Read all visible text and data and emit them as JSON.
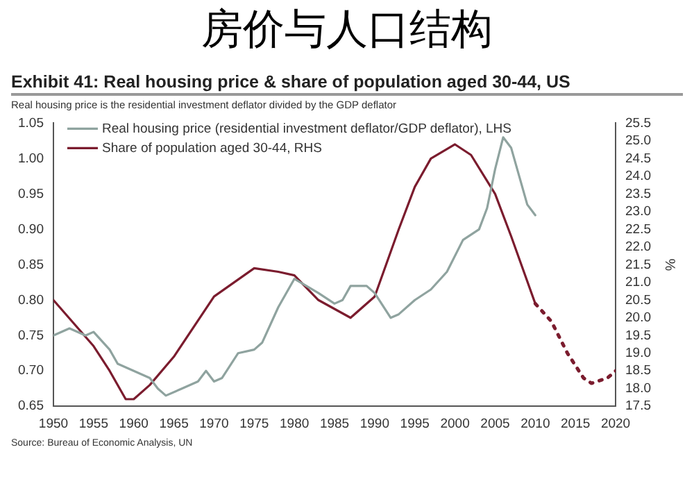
{
  "chart_data": {
    "type": "line",
    "title": "房价与人口结构",
    "subtitle": "Exhibit 41: Real housing price & share of population aged 30-44, US",
    "annotations": [
      "Real housing price is the residential investment deflator divided by the GDP deflator",
      "Source: Bureau of Economic Analysis, UN"
    ],
    "y2label": "%",
    "xlim": [
      1950,
      2020
    ],
    "xticks": [
      1950,
      1955,
      1960,
      1965,
      1970,
      1975,
      1980,
      1985,
      1990,
      1995,
      2000,
      2005,
      2010,
      2015,
      2020
    ],
    "ylim": [
      0.65,
      1.05
    ],
    "yticks": [
      {
        "value": 0.65,
        "label": "0.65"
      },
      {
        "value": 0.7,
        "label": "0.70"
      },
      {
        "value": 0.75,
        "label": "0.75"
      },
      {
        "value": 0.8,
        "label": "0.80"
      },
      {
        "value": 0.85,
        "label": "0.85"
      },
      {
        "value": 0.9,
        "label": "0.90"
      },
      {
        "value": 0.95,
        "label": "0.95"
      },
      {
        "value": 1.0,
        "label": "1.00"
      },
      {
        "value": 1.05,
        "label": "1.05"
      }
    ],
    "y2lim": [
      17.5,
      25.5
    ],
    "y2ticks": [
      {
        "value": 17.5,
        "label": "17.5"
      },
      {
        "value": 18,
        "label": "18.0"
      },
      {
        "value": 18.5,
        "label": "18.5"
      },
      {
        "value": 19,
        "label": "19.0"
      },
      {
        "value": 19.5,
        "label": "19.5"
      },
      {
        "value": 20,
        "label": "20.0"
      },
      {
        "value": 20.5,
        "label": "20.5"
      },
      {
        "value": 21,
        "label": "21.0"
      },
      {
        "value": 21.5,
        "label": "21.5"
      },
      {
        "value": 22,
        "label": "22.0"
      },
      {
        "value": 22.5,
        "label": "22.5"
      },
      {
        "value": 23,
        "label": "23.0"
      },
      {
        "value": 23.5,
        "label": "23.5"
      },
      {
        "value": 24,
        "label": "24.0"
      },
      {
        "value": 24.5,
        "label": "24.5"
      },
      {
        "value": 25,
        "label": "25.0"
      },
      {
        "value": 25.5,
        "label": "25.5"
      }
    ],
    "grid": false,
    "legend": "top left",
    "marker": "none",
    "series": [
      {
        "name": "Real housing price (residential investment deflator/GDP deflator), LHS",
        "color": "#8fa39f",
        "line_style": "solid",
        "x": [
          1950,
          1952,
          1954,
          1955,
          1957,
          1958,
          1960,
          1962,
          1963,
          1964,
          1966,
          1968,
          1969,
          1970,
          1971,
          1973,
          1975,
          1976,
          1978,
          1980,
          1983,
          1985,
          1986,
          1987,
          1989,
          1990,
          1992,
          1993,
          1995,
          1997,
          1999,
          2001,
          2003,
          2004,
          2005,
          2006,
          2007,
          2008,
          2009,
          2010
        ],
        "values": [
          0.75,
          0.76,
          0.75,
          0.755,
          0.73,
          0.71,
          0.7,
          0.69,
          0.675,
          0.665,
          0.675,
          0.685,
          0.7,
          0.685,
          0.69,
          0.725,
          0.73,
          0.74,
          0.79,
          0.83,
          0.81,
          0.795,
          0.8,
          0.82,
          0.82,
          0.81,
          0.775,
          0.78,
          0.8,
          0.815,
          0.84,
          0.885,
          0.9,
          0.93,
          0.985,
          1.03,
          1.015,
          0.975,
          0.935,
          0.92
        ]
      },
      {
        "name": "Share of population aged 30-44, RHS",
        "color": "#7b1c2e",
        "axis": "y2",
        "line_style": "solid",
        "x": [
          1950,
          1955,
          1957,
          1959,
          1960,
          1962,
          1965,
          1970,
          1975,
          1978,
          1980,
          1983,
          1987,
          1990,
          1993,
          1995,
          1997,
          2000,
          2002,
          2005,
          2007,
          2010
        ],
        "values": [
          20.5,
          19.2,
          18.5,
          17.7,
          17.7,
          18.1,
          18.9,
          20.6,
          21.4,
          21.3,
          21.2,
          20.5,
          20.0,
          20.6,
          22.5,
          23.7,
          24.5,
          24.9,
          24.6,
          23.5,
          22.3,
          20.4
        ]
      },
      {
        "color": "#7b1c2e",
        "axis": "y2",
        "line_style": "dotted",
        "x": [
          2010,
          2012,
          2014,
          2016,
          2017,
          2019,
          2020
        ],
        "values": [
          20.4,
          19.9,
          19.0,
          18.3,
          18.15,
          18.3,
          18.5
        ]
      }
    ]
  }
}
